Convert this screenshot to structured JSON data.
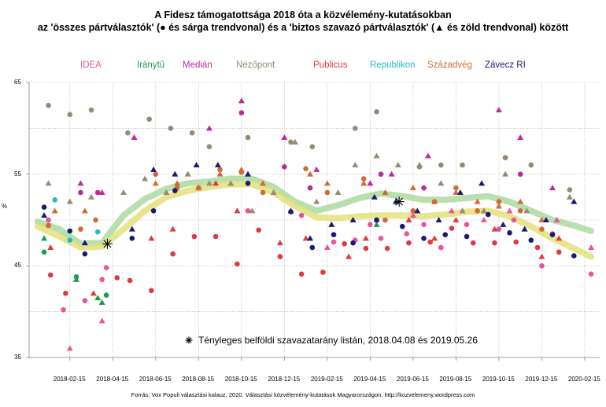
{
  "chart_data": {
    "type": "scatter",
    "title": "A Fidesz támogatottsága 2018 óta a közvélemény-kutatásokban",
    "subtitle": "az 'összes pártválasztók' (● és sárga trendvonal) és a 'biztos szavazó pártválasztók' (▲ és zöld trendvonal) között",
    "ylabel": "%",
    "ylim": [
      35,
      65
    ],
    "y_ticks": [
      "35",
      "45",
      "55",
      "65"
    ],
    "x_ticks": [
      "2018-02-15",
      "2018-04-15",
      "2018-06-15",
      "2018-08-15",
      "2018-10-15",
      "2018-12-15",
      "2019-02-15",
      "2019-04-15",
      "2019-06-15",
      "2019-08-15",
      "2019-10-15",
      "2019-12-15",
      "2020-02-15"
    ],
    "x_tick_values": [
      1.5,
      3.5,
      5.5,
      7.5,
      9.5,
      11.5,
      13.5,
      15.5,
      17.5,
      19.5,
      21.5,
      23.5,
      25.5
    ],
    "xlim": [
      -0.4,
      26.2
    ],
    "grid": true,
    "legend_position": "top",
    "annotation": "Tényleges belföldi szavazatarány listán, 2018.04.08 és 2019.05.26",
    "source": "Forrás: Vox Populi választási kalauz, 2020. Választási közvélemény-kutatások Magyarországon. http://kozvelemeny.wordpress.com",
    "actual_results": [
      {
        "x": 3.25,
        "y": 47.4
      },
      {
        "x": 16.85,
        "y": 52.0
      }
    ],
    "series": [
      {
        "name": "IDEA",
        "color": "#e8539b",
        "marker": "circle",
        "values": [
          [
            0.5,
            50.0
          ],
          [
            1.2,
            40.2
          ],
          [
            2.2,
            41.2
          ],
          [
            3.0,
            43.5
          ],
          [
            3.2,
            44.8
          ],
          [
            9.8,
            51.0
          ],
          [
            12.3,
            50.5
          ],
          [
            13.8,
            47.6
          ],
          [
            14.8,
            47.8
          ],
          [
            15.5,
            49.5
          ],
          [
            16.0,
            48.0
          ],
          [
            17.2,
            48.5
          ],
          [
            18.0,
            49.5
          ],
          [
            18.8,
            47.0
          ],
          [
            20.0,
            49.5
          ],
          [
            21.5,
            49.0
          ],
          [
            22.2,
            50.0
          ],
          [
            23.5,
            45.0
          ],
          [
            24.0,
            48.5
          ],
          [
            25.8,
            44.1
          ]
        ]
      },
      {
        "name": "IDEA",
        "color": "#e8539b",
        "marker": "triangle",
        "values": [
          [
            1.5,
            36.0
          ],
          [
            3.0,
            39.0
          ],
          [
            13.5,
            47.0
          ],
          [
            15.8,
            50.0
          ],
          [
            17.5,
            50.5
          ],
          [
            19.3,
            51.0
          ],
          [
            20.8,
            50.0
          ],
          [
            22.0,
            51.0
          ],
          [
            24.2,
            50.0
          ],
          [
            25.8,
            47.0
          ]
        ]
      },
      {
        "name": "Iránytű",
        "color": "#1e9a4a",
        "marker": "circle",
        "values": [
          [
            0.3,
            46.5
          ],
          [
            1.8,
            43.8
          ],
          [
            3.2,
            41.8
          ]
        ]
      },
      {
        "name": "Iránytű",
        "color": "#1e9a4a",
        "marker": "triangle",
        "values": [
          [
            0.3,
            48.0
          ],
          [
            1.8,
            43.5
          ],
          [
            3.0,
            41.0
          ],
          [
            2.8,
            41.5
          ],
          [
            15.8,
            49.5
          ]
        ]
      },
      {
        "name": "Medián",
        "color": "#c2279a",
        "marker": "circle",
        "values": [
          [
            2.0,
            53.0
          ],
          [
            2.8,
            53.0
          ],
          [
            9.5,
            61.7
          ],
          [
            11.5,
            55.8
          ],
          [
            12.7,
            53.5
          ],
          [
            16.0,
            55.0
          ],
          [
            18.0,
            53.5
          ],
          [
            22.5,
            55.0
          ],
          [
            21.8,
            56.8
          ]
        ]
      },
      {
        "name": "Medián",
        "color": "#c2279a",
        "marker": "triangle",
        "values": [
          [
            2.0,
            54.0
          ],
          [
            3.0,
            53.0
          ],
          [
            4.5,
            59.0
          ],
          [
            8.0,
            60.0
          ],
          [
            9.5,
            63.0
          ],
          [
            11.5,
            59.0
          ],
          [
            13.0,
            55.5
          ],
          [
            15.5,
            54.0
          ],
          [
            16.5,
            55.0
          ],
          [
            18.2,
            57.0
          ],
          [
            21.5,
            62.0
          ],
          [
            22.5,
            59.0
          ],
          [
            24.0,
            53.5
          ]
        ]
      },
      {
        "name": "Nézőpont",
        "color": "#968a73",
        "marker": "circle",
        "values": [
          [
            0.5,
            62.5
          ],
          [
            1.5,
            61.5
          ],
          [
            2.5,
            62.0
          ],
          [
            4.2,
            59.5
          ],
          [
            5.2,
            61.0
          ],
          [
            6.2,
            60.0
          ],
          [
            7.2,
            59.5
          ],
          [
            8.0,
            58.0
          ],
          [
            9.8,
            59.0
          ],
          [
            11.8,
            58.5
          ],
          [
            12.8,
            58.0
          ],
          [
            14.8,
            60.0
          ],
          [
            15.8,
            61.8
          ],
          [
            17.8,
            55.8
          ],
          [
            18.8,
            56.0
          ],
          [
            19.8,
            56.0
          ],
          [
            21.8,
            56.8
          ],
          [
            23.0,
            56.0
          ],
          [
            24.8,
            53.3
          ]
        ]
      },
      {
        "name": "Nézőpont",
        "color": "#968a73",
        "marker": "triangle",
        "values": [
          [
            0.5,
            54.0
          ],
          [
            1.5,
            52.0
          ],
          [
            2.5,
            52.5
          ],
          [
            4.0,
            53.0
          ],
          [
            5.0,
            54.5
          ],
          [
            6.0,
            53.0
          ],
          [
            7.0,
            55.0
          ],
          [
            8.0,
            54.0
          ],
          [
            9.0,
            54.0
          ],
          [
            10.0,
            51.0
          ],
          [
            11.0,
            53.0
          ],
          [
            12.0,
            58.5
          ],
          [
            13.0,
            52.0
          ],
          [
            14.0,
            53.0
          ],
          [
            14.8,
            56.0
          ],
          [
            15.8,
            57.0
          ],
          [
            16.8,
            56.0
          ],
          [
            17.8,
            56.0
          ],
          [
            18.8,
            54.0
          ],
          [
            19.8,
            51.0
          ],
          [
            20.8,
            51.0
          ],
          [
            21.8,
            55.0
          ],
          [
            22.8,
            51.0
          ],
          [
            24.8,
            52.5
          ]
        ]
      },
      {
        "name": "Publicus",
        "color": "#e03a3a",
        "marker": "circle",
        "values": [
          [
            0.6,
            44.0
          ],
          [
            1.3,
            42.0
          ],
          [
            3.7,
            43.7
          ],
          [
            4.3,
            43.4
          ],
          [
            5.3,
            42.3
          ],
          [
            6.3,
            46.3
          ],
          [
            7.3,
            48.2
          ],
          [
            8.3,
            48.2
          ],
          [
            9.3,
            45.2
          ],
          [
            10.3,
            48.9
          ],
          [
            11.3,
            46.0
          ],
          [
            12.3,
            44.1
          ],
          [
            13.3,
            44.3
          ],
          [
            14.3,
            47.4
          ],
          [
            15.3,
            46.9
          ],
          [
            16.3,
            46.9
          ],
          [
            17.3,
            47.5
          ],
          [
            18.3,
            47.6
          ],
          [
            19.3,
            49.1
          ],
          [
            20.3,
            47.5
          ],
          [
            21.3,
            47.5
          ],
          [
            22.3,
            47.6
          ],
          [
            23.3,
            47.0
          ],
          [
            24.3,
            46.5
          ]
        ]
      },
      {
        "name": "Publicus",
        "color": "#e03a3a",
        "marker": "triangle",
        "values": [
          [
            0.6,
            47.0
          ],
          [
            2.6,
            42.0
          ],
          [
            5.3,
            48.0
          ],
          [
            6.3,
            49.0
          ],
          [
            8.3,
            54.0
          ],
          [
            9.3,
            51.0
          ],
          [
            11.3,
            47.5
          ],
          [
            12.5,
            48.0
          ],
          [
            14.5,
            46.0
          ],
          [
            15.3,
            48.0
          ],
          [
            17.3,
            50.0
          ],
          [
            18.5,
            48.0
          ],
          [
            19.5,
            50.0
          ],
          [
            21.3,
            49.0
          ],
          [
            23.5,
            46.0
          ],
          [
            24.3,
            48.0
          ]
        ]
      },
      {
        "name": "Republikon",
        "color": "#27b9c1",
        "marker": "circle",
        "values": [
          [
            0.8,
            52.2
          ],
          [
            1.5,
            47.8
          ],
          [
            2.8,
            48.7
          ]
        ]
      },
      {
        "name": "Századvég",
        "color": "#d06a32",
        "marker": "circle",
        "values": [
          [
            0.5,
            49.4
          ],
          [
            2.0,
            49.0
          ],
          [
            2.7,
            50.0
          ],
          [
            5.5,
            55.0
          ],
          [
            6.5,
            53.5
          ],
          [
            7.5,
            53.5
          ],
          [
            8.5,
            55.5
          ],
          [
            9.5,
            55.2
          ],
          [
            10.5,
            53.0
          ],
          [
            12.5,
            55.6
          ],
          [
            13.5,
            53.0
          ],
          [
            15.2,
            54.5
          ],
          [
            16.2,
            50.0
          ],
          [
            17.5,
            51.0
          ],
          [
            18.5,
            52.0
          ],
          [
            19.5,
            53.5
          ],
          [
            20.5,
            51.0
          ],
          [
            21.5,
            52.0
          ],
          [
            22.5,
            51.0
          ],
          [
            23.5,
            49.0
          ]
        ]
      },
      {
        "name": "Századvég",
        "color": "#d06a32",
        "marker": "triangle",
        "values": [
          [
            0.8,
            51.0
          ],
          [
            2.2,
            51.0
          ],
          [
            5.5,
            54.0
          ],
          [
            6.5,
            54.0
          ],
          [
            7.5,
            53.5
          ],
          [
            8.5,
            55.0
          ],
          [
            9.5,
            55.5
          ],
          [
            10.5,
            54.0
          ],
          [
            12.7,
            55.0
          ],
          [
            13.5,
            54.0
          ],
          [
            15.2,
            54.0
          ],
          [
            16.2,
            53.0
          ],
          [
            17.5,
            53.5
          ],
          [
            18.5,
            52.0
          ],
          [
            19.5,
            53.0
          ],
          [
            20.5,
            52.0
          ],
          [
            21.5,
            51.5
          ],
          [
            22.5,
            52.0
          ],
          [
            23.5,
            50.0
          ]
        ]
      },
      {
        "name": "Závecz RI",
        "color": "#1a1a73",
        "marker": "circle",
        "values": [
          [
            0.3,
            51.4
          ],
          [
            1.5,
            48.8
          ],
          [
            2.2,
            46.3
          ],
          [
            4.4,
            48.0
          ],
          [
            5.4,
            51.0
          ],
          [
            6.4,
            53.2
          ],
          [
            9.8,
            54.0
          ],
          [
            11.8,
            50.9
          ],
          [
            12.8,
            47.0
          ],
          [
            13.8,
            48.4
          ],
          [
            14.7,
            47.5
          ],
          [
            15.8,
            50.0
          ],
          [
            17.0,
            49.3
          ],
          [
            18.0,
            48.0
          ],
          [
            19.0,
            48.4
          ],
          [
            20.0,
            48.2
          ],
          [
            21.0,
            50.6
          ],
          [
            22.0,
            48.6
          ],
          [
            23.0,
            47.8
          ],
          [
            24.0,
            48.4
          ],
          [
            25.0,
            46.1
          ]
        ]
      },
      {
        "name": "Závecz RI",
        "color": "#1a1a73",
        "marker": "triangle",
        "values": [
          [
            0.3,
            50.5
          ],
          [
            2.2,
            47.5
          ],
          [
            4.4,
            49.0
          ],
          [
            5.4,
            55.5
          ],
          [
            6.4,
            55.0
          ],
          [
            7.4,
            56.0
          ],
          [
            8.4,
            56.0
          ],
          [
            9.8,
            55.0
          ],
          [
            11.8,
            51.0
          ],
          [
            12.7,
            48.0
          ],
          [
            13.7,
            49.5
          ],
          [
            14.7,
            50.0
          ],
          [
            15.7,
            52.5
          ],
          [
            16.7,
            52.0
          ],
          [
            17.7,
            51.0
          ],
          [
            18.7,
            50.0
          ],
          [
            19.7,
            53.0
          ],
          [
            20.7,
            54.0
          ],
          [
            21.7,
            49.5
          ],
          [
            22.7,
            49.0
          ],
          [
            23.7,
            50.0
          ],
          [
            25.0,
            52.0
          ]
        ]
      }
    ],
    "trend_all_voters": {
      "color": "#e3e07a",
      "values": [
        [
          0.0,
          49.3
        ],
        [
          1.0,
          48.2
        ],
        [
          2.0,
          47.0
        ],
        [
          3.0,
          47.1
        ],
        [
          4.0,
          49.0
        ],
        [
          5.0,
          51.0
        ],
        [
          6.0,
          52.5
        ],
        [
          7.0,
          53.2
        ],
        [
          8.0,
          53.6
        ],
        [
          9.0,
          53.9
        ],
        [
          10.0,
          53.9
        ],
        [
          11.0,
          53.0
        ],
        [
          12.0,
          51.5
        ],
        [
          13.0,
          50.3
        ],
        [
          14.0,
          50.2
        ],
        [
          15.0,
          50.4
        ],
        [
          16.0,
          50.5
        ],
        [
          17.0,
          50.5
        ],
        [
          18.0,
          50.4
        ],
        [
          19.0,
          50.6
        ],
        [
          20.0,
          50.9
        ],
        [
          21.0,
          51.0
        ],
        [
          22.0,
          50.4
        ],
        [
          23.0,
          49.3
        ],
        [
          24.0,
          48.0
        ],
        [
          25.0,
          46.9
        ],
        [
          25.8,
          46.0
        ]
      ]
    },
    "trend_likely_voters": {
      "color": "#acd9a0",
      "values": [
        [
          0.0,
          49.8
        ],
        [
          1.0,
          49.0
        ],
        [
          2.0,
          47.4
        ],
        [
          3.0,
          47.5
        ],
        [
          4.0,
          50.5
        ],
        [
          5.0,
          52.3
        ],
        [
          6.0,
          53.4
        ],
        [
          7.0,
          54.0
        ],
        [
          8.0,
          54.2
        ],
        [
          9.0,
          54.5
        ],
        [
          10.0,
          54.5
        ],
        [
          11.0,
          53.6
        ],
        [
          12.0,
          52.0
        ],
        [
          13.0,
          51.0
        ],
        [
          14.0,
          51.6
        ],
        [
          15.0,
          52.4
        ],
        [
          16.0,
          52.9
        ],
        [
          17.0,
          52.6
        ],
        [
          18.0,
          52.2
        ],
        [
          19.0,
          52.2
        ],
        [
          20.0,
          52.4
        ],
        [
          21.0,
          52.6
        ],
        [
          22.0,
          52.0
        ],
        [
          23.0,
          51.0
        ],
        [
          24.0,
          50.0
        ],
        [
          25.0,
          49.4
        ],
        [
          25.8,
          48.8
        ]
      ]
    }
  }
}
